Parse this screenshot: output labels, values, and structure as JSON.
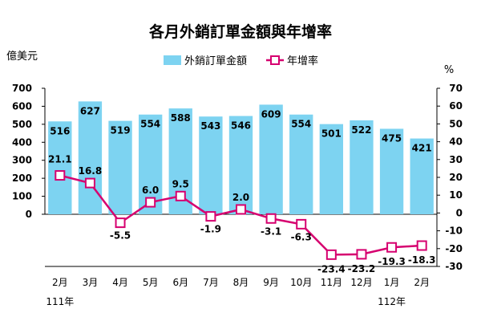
{
  "chart_data": {
    "type": "bar",
    "title": "各月外銷訂單金額與年增率",
    "left_unit": "億美元",
    "right_unit": "%",
    "categories": [
      "2月",
      "3月",
      "4月",
      "5月",
      "6月",
      "7月",
      "8月",
      "9月",
      "10月",
      "11月",
      "12月",
      "1月",
      "2月"
    ],
    "year_labels": [
      {
        "text": "111年",
        "category_index": 0
      },
      {
        "text": "112年",
        "category_index": 11
      }
    ],
    "series": [
      {
        "name": "外銷訂單金額",
        "type": "bar",
        "axis": "left",
        "color": "#7dd3f1",
        "values": [
          516,
          627,
          519,
          554,
          588,
          543,
          546,
          609,
          554,
          501,
          522,
          475,
          421
        ]
      },
      {
        "name": "年增率",
        "type": "line",
        "axis": "right",
        "color": "#d6006f",
        "values": [
          21.1,
          16.8,
          -5.5,
          6.0,
          9.5,
          -1.9,
          2.0,
          -3.1,
          -6.3,
          -23.4,
          -23.2,
          -19.3,
          -18.3
        ]
      }
    ],
    "bar_labels": [
      "516",
      "627",
      "519",
      "554",
      "588",
      "543",
      "546",
      "609",
      "554",
      "501",
      "522",
      "475",
      "421"
    ],
    "line_labels": [
      "21.1",
      "16.8",
      "-5.5",
      "6.0",
      "9.5",
      "-1.9",
      "2.0",
      "-3.1",
      "-6.3",
      "-23.4",
      "-23.2",
      "-19.3",
      "-18.3"
    ],
    "left_axis": {
      "ylim": [
        -300,
        700
      ],
      "ticks": [
        0,
        100,
        200,
        300,
        400,
        500,
        600,
        700
      ]
    },
    "right_axis": {
      "ylim": [
        -30,
        70
      ],
      "ticks": [
        -30,
        -20,
        -10,
        0,
        10,
        20,
        30,
        40,
        50,
        60,
        70
      ]
    },
    "grid": false,
    "legend_position": "top"
  }
}
